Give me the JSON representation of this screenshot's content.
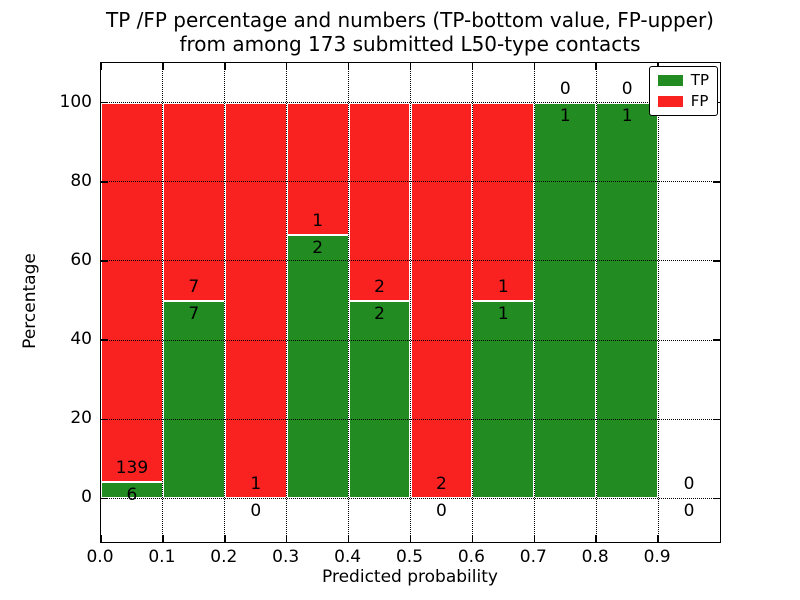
{
  "title": {
    "line1": "TP /FP percentage and numbers (TP-bottom value, FP-upper)",
    "line2": "from among 173 submitted L50-type contacts"
  },
  "chart_data": {
    "type": "bar",
    "subtype": "stacked-percentage-histogram",
    "title": "TP /FP percentage and numbers (TP-bottom value, FP-upper) from among 173 submitted L50-type contacts",
    "xlabel": "Predicted probability",
    "ylabel": "Percentage",
    "total_contacts": 173,
    "xlim": [
      0.0,
      1.0
    ],
    "ylim": [
      -11,
      110
    ],
    "x_ticks": [
      0.0,
      0.1,
      0.2,
      0.3,
      0.4,
      0.5,
      0.6,
      0.7,
      0.8,
      0.9
    ],
    "y_ticks": [
      0,
      20,
      40,
      60,
      80,
      100
    ],
    "grid": "dotted black, on",
    "legend": {
      "position": "upper right",
      "entries": [
        {
          "label": "TP",
          "color": "#228b22"
        },
        {
          "label": "FP",
          "color": "#fa2121"
        }
      ]
    },
    "colors": {
      "tp": "#228b22",
      "fp": "#fa2121",
      "bar_edge": "#ffffff",
      "grid": "#000000"
    },
    "bins": [
      {
        "x_start": 0.0,
        "x_end": 0.1,
        "tp": 6,
        "fp": 139,
        "tp_pct": 4.14,
        "fp_pct": 95.86
      },
      {
        "x_start": 0.1,
        "x_end": 0.2,
        "tp": 7,
        "fp": 7,
        "tp_pct": 50,
        "fp_pct": 50
      },
      {
        "x_start": 0.2,
        "x_end": 0.3,
        "tp": 0,
        "fp": 1,
        "tp_pct": 0,
        "fp_pct": 100
      },
      {
        "x_start": 0.3,
        "x_end": 0.4,
        "tp": 2,
        "fp": 1,
        "tp_pct": 66.67,
        "fp_pct": 33.33
      },
      {
        "x_start": 0.4,
        "x_end": 0.5,
        "tp": 2,
        "fp": 2,
        "tp_pct": 50,
        "fp_pct": 50
      },
      {
        "x_start": 0.5,
        "x_end": 0.6,
        "tp": 0,
        "fp": 2,
        "tp_pct": 0,
        "fp_pct": 100
      },
      {
        "x_start": 0.6,
        "x_end": 0.7,
        "tp": 1,
        "fp": 1,
        "tp_pct": 50,
        "fp_pct": 50
      },
      {
        "x_start": 0.7,
        "x_end": 0.8,
        "tp": 1,
        "fp": 0,
        "tp_pct": 100,
        "fp_pct": 0
      },
      {
        "x_start": 0.8,
        "x_end": 0.9,
        "tp": 1,
        "fp": 0,
        "tp_pct": 100,
        "fp_pct": 0
      },
      {
        "x_start": 0.9,
        "x_end": 1.0,
        "tp": 0,
        "fp": 0,
        "tp_pct": 0,
        "fp_pct": 0
      }
    ]
  }
}
